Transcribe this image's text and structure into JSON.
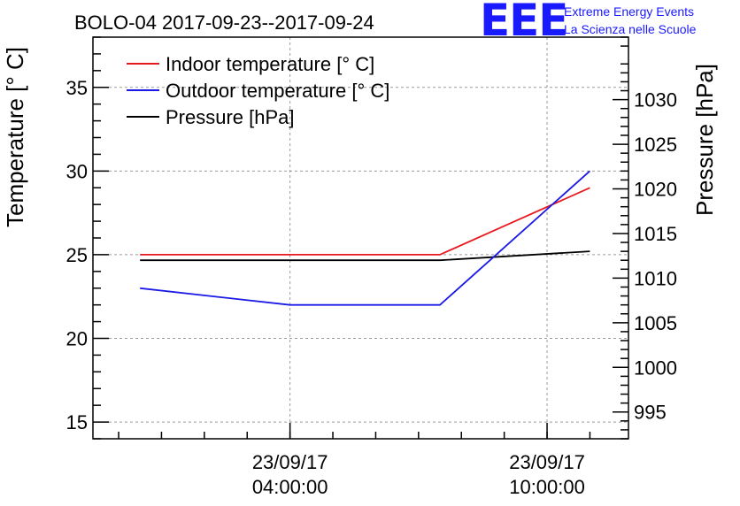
{
  "chart_data": {
    "type": "line",
    "title": "BOLO-04 2017-09-23--2017-09-24",
    "ylabel": "Temperature [° C]",
    "y2label": "Pressure [hPa]",
    "grid": true,
    "legend_position": "top-left",
    "x_tick_labels": [
      {
        "date": "23/09/17",
        "time": "04:00:00",
        "hours": 4
      },
      {
        "date": "23/09/17",
        "time": "10:00:00",
        "hours": 10
      }
    ],
    "xlim_hours": [
      -0.6,
      11.9
    ],
    "ylim": [
      14,
      38
    ],
    "y_ticks": [
      15,
      20,
      25,
      30,
      35
    ],
    "y2lim": [
      992,
      1037
    ],
    "y2_ticks": [
      995,
      1000,
      1005,
      1010,
      1015,
      1020,
      1025,
      1030
    ],
    "series": [
      {
        "name": "Indoor temperature [° C]",
        "axis": "left",
        "color": "#e8191e",
        "x_hours": [
          0.5,
          7.5,
          11
        ],
        "values": [
          25,
          25,
          29
        ]
      },
      {
        "name": "Outdoor temperature [° C]",
        "axis": "left",
        "color": "#1a1ae6",
        "x_hours": [
          0.5,
          4,
          7.5,
          11
        ],
        "values": [
          23,
          22,
          22,
          30
        ]
      },
      {
        "name": "Pressure [hPa]",
        "axis": "right",
        "color": "#000000",
        "x_hours": [
          0.5,
          7.5,
          11
        ],
        "values": [
          1012,
          1012,
          1013
        ]
      }
    ]
  },
  "logo": {
    "letters": "EEE",
    "line1": "Extreme Energy Events",
    "line2": "La Scienza nelle Scuole"
  }
}
